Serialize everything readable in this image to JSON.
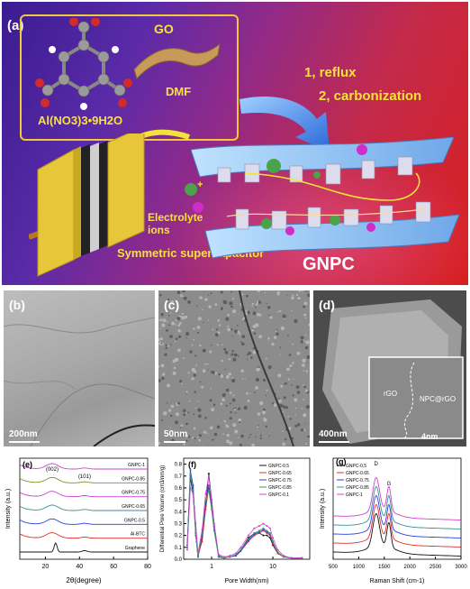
{
  "panel_a": {
    "label": "(a)",
    "go_label": "GO",
    "dmf_label": "DMF",
    "salt_label": "Al(NO3)3•9H2O",
    "step1": "1, reflux",
    "step2": "2, carbonization",
    "electrolyte_label": "Electrolyte ions",
    "device_label": "Symmetric supercapacitor",
    "product_label": "GNPC"
  },
  "micrographs": [
    {
      "label": "(b)",
      "scale": "200nm"
    },
    {
      "label": "(c)",
      "scale": "50nm"
    },
    {
      "label": "(d)",
      "scale": "400nm",
      "inset_scale": "4nm",
      "inset_labels": [
        "rGO",
        "NPC@rGO"
      ]
    }
  ],
  "colors": {
    "black": "#111111",
    "red": "#e23030",
    "blue": "#2a3fe0",
    "green": "#3a9a60",
    "magenta": "#d040d0",
    "olive": "#8a8a28",
    "teal": "#3f8f8f"
  },
  "chart_data": [
    {
      "panel": "(e)",
      "type": "line",
      "xlabel": "2θ(degree)",
      "ylabel": "Intensity (a.u.)",
      "xlim": [
        5,
        80
      ],
      "xticks": [
        20,
        40,
        60,
        80
      ],
      "annotations": [
        "(002)",
        "(101)"
      ],
      "series": [
        {
          "name": "GNPC-1",
          "offset": 7,
          "color": "#d040d0"
        },
        {
          "name": "GNPC-0.85",
          "offset": 6,
          "color": "#8a8a28"
        },
        {
          "name": "GNPC-0.75",
          "offset": 5,
          "color": "#d040d0"
        },
        {
          "name": "GNPC-0.65",
          "offset": 4,
          "color": "#3f8f8f"
        },
        {
          "name": "GNPC-0.5",
          "offset": 3,
          "color": "#2a3fe0"
        },
        {
          "name": "Al-BTC",
          "offset": 2,
          "color": "#e23030"
        },
        {
          "name": "Graphene",
          "offset": 1,
          "color": "#111111"
        }
      ]
    },
    {
      "panel": "(f)",
      "type": "line",
      "xlabel": "Pore Width(nm)",
      "ylabel": "Differential Pore Volume (cm3/nm/g)",
      "xscale": "log",
      "xlim": [
        0.35,
        40
      ],
      "ylim": [
        0,
        0.85
      ],
      "yticks": [
        0.0,
        0.1,
        0.2,
        0.3,
        0.4,
        0.5,
        0.6,
        0.7,
        0.8
      ],
      "xticks": [
        1,
        10
      ],
      "legend": "top-right",
      "series": [
        {
          "name": "GNPC-0.5",
          "color": "#111111",
          "x": [
            0.4,
            0.45,
            0.5,
            0.55,
            0.6,
            0.7,
            0.8,
            0.9,
            1.0,
            1.1,
            1.3,
            1.6,
            2.0,
            2.5,
            3,
            4,
            5,
            6,
            7,
            8,
            9,
            10,
            12,
            15,
            20,
            30
          ],
          "y": [
            0.1,
            0.68,
            0.55,
            0.2,
            0.02,
            0.18,
            0.45,
            0.72,
            0.5,
            0.3,
            0.02,
            0.01,
            0.02,
            0.03,
            0.08,
            0.18,
            0.22,
            0.22,
            0.2,
            0.2,
            0.18,
            0.12,
            0.05,
            0.02,
            0.01,
            0.01
          ]
        },
        {
          "name": "GNPC-0.65",
          "color": "#e23030",
          "x": [
            0.4,
            0.45,
            0.5,
            0.55,
            0.6,
            0.7,
            0.8,
            0.9,
            1.0,
            1.1,
            1.3,
            1.6,
            2.0,
            2.5,
            3,
            4,
            5,
            6,
            7,
            8,
            9,
            10,
            12,
            15,
            20,
            30
          ],
          "y": [
            0.1,
            0.7,
            0.6,
            0.25,
            0.03,
            0.15,
            0.42,
            0.6,
            0.45,
            0.25,
            0.02,
            0.01,
            0.02,
            0.03,
            0.07,
            0.15,
            0.2,
            0.22,
            0.24,
            0.22,
            0.2,
            0.13,
            0.05,
            0.02,
            0.01,
            0.01
          ]
        },
        {
          "name": "GNPC-0.75",
          "color": "#2a3fe0",
          "x": [
            0.4,
            0.45,
            0.5,
            0.55,
            0.6,
            0.7,
            0.8,
            0.9,
            1.0,
            1.1,
            1.3,
            1.6,
            2.0,
            2.5,
            3,
            4,
            5,
            6,
            7,
            8,
            9,
            10,
            12,
            15,
            20,
            30
          ],
          "y": [
            0.12,
            0.75,
            0.62,
            0.22,
            0.02,
            0.2,
            0.48,
            0.62,
            0.48,
            0.28,
            0.03,
            0.01,
            0.02,
            0.03,
            0.07,
            0.16,
            0.21,
            0.23,
            0.25,
            0.23,
            0.21,
            0.14,
            0.06,
            0.02,
            0.01,
            0.01
          ]
        },
        {
          "name": "GNPC-0.85",
          "color": "#3a9a60",
          "x": [
            0.4,
            0.45,
            0.5,
            0.55,
            0.6,
            0.7,
            0.8,
            0.9,
            1.0,
            1.1,
            1.3,
            1.6,
            2.0,
            2.5,
            3,
            4,
            5,
            6,
            7,
            8,
            9,
            10,
            12,
            15,
            20,
            30
          ],
          "y": [
            0.1,
            0.72,
            0.58,
            0.2,
            0.02,
            0.22,
            0.5,
            0.58,
            0.42,
            0.24,
            0.02,
            0.01,
            0.02,
            0.04,
            0.08,
            0.17,
            0.22,
            0.24,
            0.26,
            0.24,
            0.22,
            0.15,
            0.06,
            0.02,
            0.01,
            0.01
          ]
        },
        {
          "name": "GNPC-0.1",
          "color": "#d040d0",
          "x": [
            0.4,
            0.45,
            0.5,
            0.55,
            0.6,
            0.7,
            0.8,
            0.9,
            1.0,
            1.1,
            1.3,
            1.6,
            2.0,
            2.5,
            3,
            4,
            5,
            6,
            7,
            8,
            9,
            10,
            12,
            15,
            20,
            30
          ],
          "y": [
            0.08,
            0.6,
            0.55,
            0.3,
            0.05,
            0.25,
            0.55,
            0.7,
            0.5,
            0.3,
            0.04,
            0.02,
            0.03,
            0.05,
            0.1,
            0.2,
            0.26,
            0.28,
            0.3,
            0.28,
            0.26,
            0.18,
            0.08,
            0.03,
            0.01,
            0.01
          ]
        }
      ]
    },
    {
      "panel": "(g)",
      "type": "line",
      "xlabel": "Raman Shift (cm-1)",
      "ylabel": "Intensity (a.u.)",
      "xlim": [
        500,
        3000
      ],
      "xticks": [
        500,
        1000,
        1500,
        2000,
        2500,
        3000
      ],
      "annotations": [
        "D",
        "G"
      ],
      "legend": "top-left",
      "series": [
        {
          "name": "GNPC-0.5",
          "offset": 0,
          "color": "#111111"
        },
        {
          "name": "GNPC-0.65",
          "offset": 1,
          "color": "#e23030"
        },
        {
          "name": "GNPC-0.75",
          "offset": 2,
          "color": "#2a3fe0"
        },
        {
          "name": "GNPC-0.85",
          "offset": 3,
          "color": "#3f8f8f"
        },
        {
          "name": "GNPC-1",
          "offset": 4,
          "color": "#d040d0"
        }
      ]
    }
  ]
}
